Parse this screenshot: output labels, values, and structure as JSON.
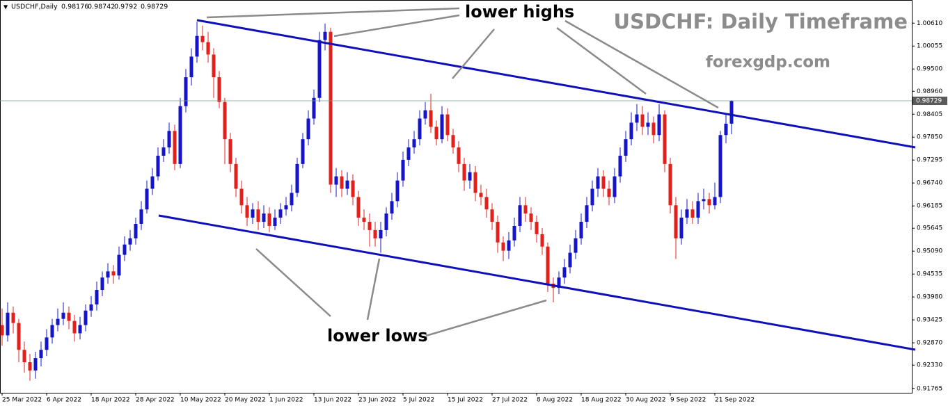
{
  "chart_data": {
    "type": "candlestick",
    "symbol": "USDCHF,Daily",
    "title": "USDCHF: Daily Timeframe",
    "subtitle": "forexgdp.com",
    "annotations": [
      "lower highs",
      "lower lows"
    ],
    "up_color": "#1414c8",
    "down_color": "#e5201b",
    "categories": [
      "25 Mar 2022",
      null,
      null,
      null,
      null,
      null,
      null,
      null,
      "6 Apr 2022",
      null,
      null,
      null,
      null,
      null,
      null,
      null,
      "18 Apr 2022",
      null,
      null,
      null,
      null,
      null,
      null,
      null,
      "28 Apr 2022",
      null,
      null,
      null,
      null,
      null,
      null,
      null,
      "10 May 2022",
      null,
      null,
      null,
      null,
      null,
      null,
      null,
      "20 May 2022",
      null,
      null,
      null,
      null,
      null,
      null,
      null,
      "1 Jun 2022",
      null,
      null,
      null,
      null,
      null,
      null,
      null,
      "13 Jun 2022",
      null,
      null,
      null,
      null,
      null,
      null,
      null,
      "23 Jun 2022",
      null,
      null,
      null,
      null,
      null,
      null,
      null,
      "5 Jul 2022",
      null,
      null,
      null,
      null,
      null,
      null,
      null,
      "15 Jul 2022",
      null,
      null,
      null,
      null,
      null,
      null,
      null,
      "27 Jul 2022",
      null,
      null,
      null,
      null,
      null,
      null,
      null,
      "8 Aug 2022",
      null,
      null,
      null,
      null,
      null,
      null,
      null,
      "18 Aug 2022",
      null,
      null,
      null,
      null,
      null,
      null,
      null,
      "30 Aug 2022",
      null,
      null,
      null,
      null,
      null,
      null,
      null,
      "9 Sep 2022",
      null,
      null,
      null,
      null,
      null,
      null,
      null,
      "21 Sep 2022",
      null,
      null,
      null
    ],
    "open": [
      0.933,
      0.9305,
      0.936,
      0.9335,
      0.927,
      0.924,
      0.922,
      0.925,
      0.927,
      0.93,
      0.933,
      0.9345,
      0.936,
      0.934,
      0.931,
      0.933,
      0.9365,
      0.938,
      0.9415,
      0.9445,
      0.946,
      0.945,
      0.95,
      0.9525,
      0.954,
      0.9575,
      0.961,
      0.966,
      0.969,
      0.974,
      0.976,
      0.98,
      0.972,
      0.986,
      0.993,
      0.998,
      1.003,
      1.0015,
      0.9985,
      0.993,
      0.987,
      0.978,
      0.972,
      0.966,
      0.962,
      0.959,
      0.961,
      0.958,
      0.96,
      0.957,
      0.959,
      0.961,
      0.962,
      0.965,
      0.972,
      0.978,
      0.983,
      0.988,
      1.002,
      1.004,
      0.967,
      0.969,
      0.966,
      0.968,
      0.964,
      0.959,
      0.958,
      0.956,
      0.954,
      0.956,
      0.96,
      0.963,
      0.968,
      0.973,
      0.976,
      0.978,
      0.983,
      0.985,
      0.981,
      0.978,
      0.984,
      0.979,
      0.976,
      0.972,
      0.968,
      0.97,
      0.965,
      0.964,
      0.961,
      0.958,
      0.953,
      0.951,
      0.9535,
      0.957,
      0.962,
      0.96,
      0.958,
      0.955,
      0.952,
      0.943,
      0.942,
      0.9445,
      0.947,
      0.9505,
      0.954,
      0.958,
      0.962,
      0.966,
      0.969,
      0.966,
      0.964,
      0.969,
      0.974,
      0.978,
      0.982,
      0.984,
      0.981,
      0.982,
      0.979,
      0.984,
      0.972,
      0.962,
      0.954,
      0.959,
      0.961,
      0.959,
      0.963,
      0.9635,
      0.962,
      0.964,
      0.979,
      0.98176
    ],
    "high": [
      0.937,
      0.9385,
      0.9375,
      0.9345,
      0.929,
      0.926,
      0.9265,
      0.929,
      0.932,
      0.9345,
      0.937,
      0.9385,
      0.9375,
      0.9355,
      0.935,
      0.938,
      0.94,
      0.9435,
      0.946,
      0.948,
      0.9475,
      0.952,
      0.9545,
      0.956,
      0.959,
      0.963,
      0.968,
      0.971,
      0.976,
      0.978,
      0.982,
      0.9815,
      0.988,
      0.995,
      1.0,
      1.0064,
      1.0055,
      1.004,
      1.0,
      0.9945,
      0.988,
      0.9795,
      0.9735,
      0.968,
      0.964,
      0.9625,
      0.963,
      0.962,
      0.9615,
      0.961,
      0.9625,
      0.964,
      0.967,
      0.9735,
      0.9795,
      0.985,
      0.99,
      1.004,
      1.006,
      1.005,
      0.971,
      0.9705,
      0.97,
      0.9695,
      0.9655,
      0.961,
      0.96,
      0.958,
      0.958,
      0.9615,
      0.965,
      0.97,
      0.975,
      0.978,
      0.98,
      0.985,
      0.987,
      0.989,
      0.9825,
      0.986,
      0.9855,
      0.9805,
      0.9775,
      0.9735,
      0.972,
      0.9715,
      0.967,
      0.966,
      0.9625,
      0.9595,
      0.9545,
      0.9555,
      0.959,
      0.964,
      0.964,
      0.9615,
      0.9595,
      0.9565,
      0.953,
      0.9445,
      0.946,
      0.949,
      0.9525,
      0.956,
      0.96,
      0.964,
      0.968,
      0.971,
      0.9705,
      0.968,
      0.971,
      0.976,
      0.98,
      0.9845,
      0.9865,
      0.986,
      0.9845,
      0.9835,
      0.9865,
      0.985,
      0.9735,
      0.964,
      0.961,
      0.9635,
      0.963,
      0.965,
      0.966,
      0.965,
      0.9675,
      0.98,
      0.984,
      0.98742
    ],
    "low": [
      0.928,
      0.929,
      0.931,
      0.924,
      0.9215,
      0.9195,
      0.92,
      0.923,
      0.9255,
      0.9285,
      0.9315,
      0.933,
      0.932,
      0.929,
      0.9295,
      0.9315,
      0.935,
      0.9365,
      0.94,
      0.943,
      0.943,
      0.944,
      0.9485,
      0.951,
      0.9525,
      0.956,
      0.96,
      0.9645,
      0.968,
      0.9725,
      0.9745,
      0.9705,
      0.971,
      0.9845,
      0.991,
      0.9965,
      0.9995,
      0.9965,
      0.988,
      0.9855,
      0.972,
      0.97,
      0.964,
      0.96,
      0.957,
      0.9575,
      0.956,
      0.9565,
      0.9555,
      0.956,
      0.9575,
      0.9595,
      0.9605,
      0.964,
      0.971,
      0.9765,
      0.9815,
      0.987,
      0.9995,
      0.965,
      0.964,
      0.964,
      0.9645,
      0.962,
      0.957,
      0.956,
      0.952,
      0.952,
      0.9505,
      0.9545,
      0.9585,
      0.9615,
      0.9665,
      0.9715,
      0.9745,
      0.9765,
      0.9815,
      0.9795,
      0.9765,
      0.977,
      0.9775,
      0.9745,
      0.97,
      0.9655,
      0.966,
      0.963,
      0.962,
      0.959,
      0.956,
      0.9505,
      0.9485,
      0.949,
      0.952,
      0.9555,
      0.958,
      0.956,
      0.953,
      0.95,
      0.941,
      0.9385,
      0.9405,
      0.943,
      0.9455,
      0.949,
      0.9525,
      0.9565,
      0.9605,
      0.964,
      0.964,
      0.962,
      0.9625,
      0.9675,
      0.9725,
      0.9765,
      0.98,
      0.979,
      0.979,
      0.977,
      0.9775,
      0.97,
      0.96,
      0.949,
      0.9525,
      0.9575,
      0.9575,
      0.9575,
      0.961,
      0.96,
      0.961,
      0.9625,
      0.977,
      0.9792
    ],
    "close": [
      0.9305,
      0.936,
      0.9335,
      0.927,
      0.924,
      0.922,
      0.925,
      0.927,
      0.93,
      0.933,
      0.9345,
      0.936,
      0.934,
      0.931,
      0.933,
      0.9365,
      0.938,
      0.9415,
      0.9445,
      0.946,
      0.945,
      0.95,
      0.9525,
      0.954,
      0.9575,
      0.961,
      0.966,
      0.969,
      0.974,
      0.976,
      0.98,
      0.972,
      0.986,
      0.993,
      0.998,
      1.003,
      1.0015,
      0.9985,
      0.993,
      0.987,
      0.978,
      0.972,
      0.966,
      0.962,
      0.959,
      0.961,
      0.958,
      0.96,
      0.957,
      0.959,
      0.961,
      0.962,
      0.965,
      0.972,
      0.978,
      0.983,
      0.988,
      1.002,
      1.004,
      0.967,
      0.969,
      0.966,
      0.968,
      0.964,
      0.959,
      0.958,
      0.956,
      0.954,
      0.956,
      0.96,
      0.963,
      0.968,
      0.973,
      0.976,
      0.978,
      0.983,
      0.985,
      0.981,
      0.978,
      0.984,
      0.979,
      0.976,
      0.972,
      0.968,
      0.97,
      0.965,
      0.964,
      0.961,
      0.958,
      0.953,
      0.951,
      0.9535,
      0.957,
      0.962,
      0.96,
      0.958,
      0.955,
      0.952,
      0.943,
      0.942,
      0.9445,
      0.947,
      0.9505,
      0.954,
      0.958,
      0.962,
      0.966,
      0.969,
      0.966,
      0.964,
      0.969,
      0.974,
      0.978,
      0.982,
      0.984,
      0.981,
      0.982,
      0.979,
      0.984,
      0.972,
      0.962,
      0.954,
      0.959,
      0.961,
      0.959,
      0.963,
      0.9635,
      0.962,
      0.964,
      0.979,
      0.98176,
      0.98729
    ],
    "ylim": [
      0.9166,
      1.0117
    ],
    "yticks": [
      {
        "value": 1.0061,
        "label": "1.00610"
      },
      1.00055,
      {
        "value": 0.995,
        "label": "0.99500"
      },
      {
        "value": 0.9896,
        "label": "0.98960"
      },
      0.98405,
      {
        "value": 0.9785,
        "label": "0.97850"
      },
      0.97295,
      {
        "value": 0.9674,
        "label": "0.96740"
      },
      0.96185,
      0.95645,
      {
        "value": 0.9509,
        "label": "0.95090"
      },
      0.94535,
      {
        "value": 0.9398,
        "label": "0.93980"
      },
      0.93425,
      {
        "value": 0.9287,
        "label": "0.92870"
      },
      {
        "value": 0.9233,
        "label": "0.92330"
      },
      0.91765
    ]
  }
}
